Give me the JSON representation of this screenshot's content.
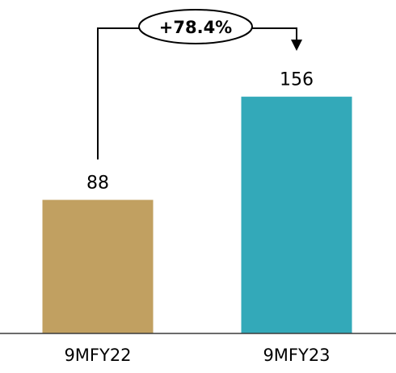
{
  "chart_data": {
    "type": "bar",
    "categories": [
      "9MFY22",
      "9MFY23"
    ],
    "values": [
      88,
      156
    ],
    "data_labels": [
      "88",
      "156"
    ],
    "colors": [
      "#C1A061",
      "#33A9B9"
    ],
    "title": "",
    "xlabel": "",
    "ylabel": "",
    "ylim": [
      0,
      180
    ],
    "grid": false,
    "legend": "none",
    "annotation": {
      "label": "+78.4%",
      "from_category": "9MFY22",
      "to_category": "9MFY23",
      "arrow": "arrow-down-icon"
    }
  }
}
